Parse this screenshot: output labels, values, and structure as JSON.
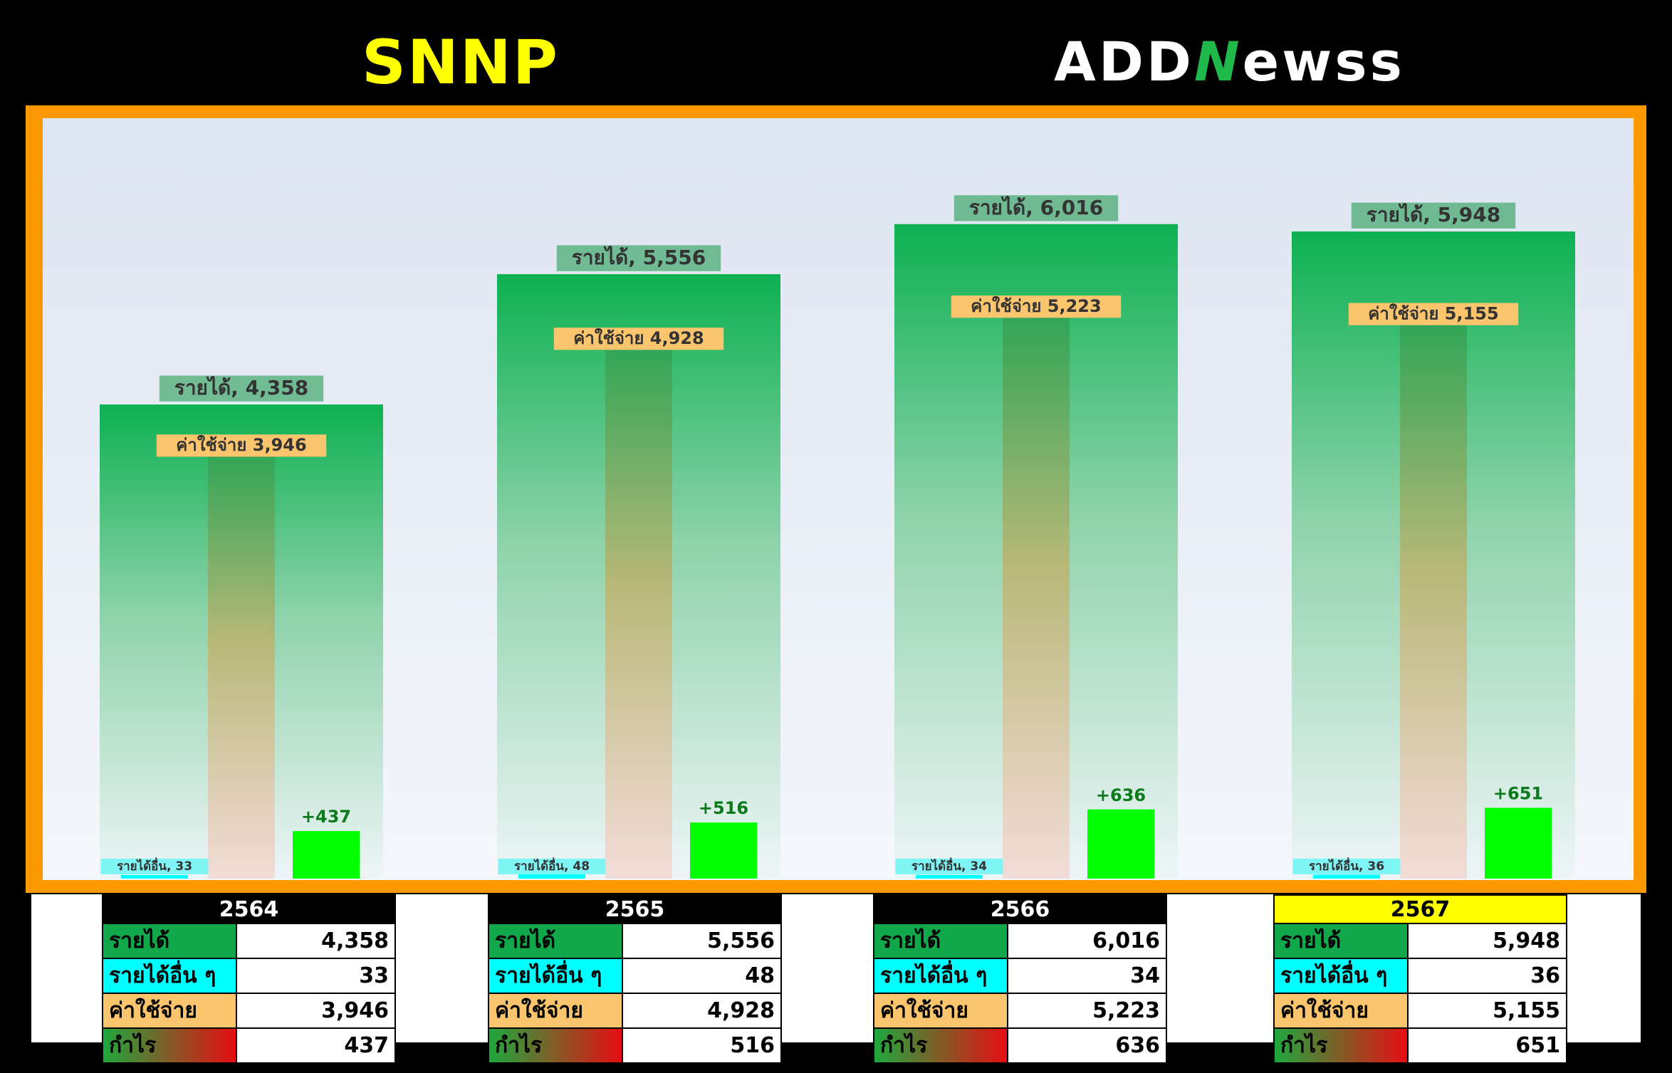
{
  "header": {
    "ticker": "SNNP",
    "logo_text_a": "ADD",
    "logo_text_n": "N",
    "logo_text_b": "ewss"
  },
  "chart_data": {
    "type": "bar",
    "categories": [
      "2564",
      "2565",
      "2566",
      "2567"
    ],
    "series": [
      {
        "name": "รายได้",
        "values": [
          4358,
          5556,
          6016,
          5948
        ],
        "color": "#0db151"
      },
      {
        "name": "ค่าใช้จ่าย",
        "values": [
          3946,
          4928,
          5223,
          5155
        ],
        "color": "#fbc56e"
      },
      {
        "name": "รายได้อื่น",
        "values": [
          33,
          48,
          34,
          36
        ],
        "color": "#00ffff"
      },
      {
        "name": "กำไร",
        "values": [
          437,
          516,
          636,
          651
        ],
        "color": "#00ff00"
      }
    ],
    "labels": {
      "revenue": [
        "รายได้, 4,358",
        "รายได้, 5,556",
        "รายได้, 6,016",
        "รายได้, 5,948"
      ],
      "expense": [
        "ค่าใช้จ่าย 3,946",
        "ค่าใช้จ่าย 4,928",
        "ค่าใช้จ่าย 5,223",
        "ค่าใช้จ่าย 5,155"
      ],
      "other": [
        "รายได้อื่น, 33",
        "รายได้อื่น, 48",
        "รายได้อื่น, 34",
        "รายได้อื่น, 36"
      ],
      "profit": [
        "+437",
        "+516",
        "+636",
        "+651"
      ]
    },
    "ylim": [
      0,
      7000
    ],
    "grid": false
  },
  "tables": [
    {
      "year": "2564",
      "highlight": false,
      "rows": [
        {
          "label": "รายได้",
          "value": "4,358"
        },
        {
          "label": "รายได้อื่น ๆ",
          "value": "33"
        },
        {
          "label": "ค่าใช้จ่าย",
          "value": "3,946"
        },
        {
          "label": "กำไร",
          "value": "437"
        }
      ]
    },
    {
      "year": "2565",
      "highlight": false,
      "rows": [
        {
          "label": "รายได้",
          "value": "5,556"
        },
        {
          "label": "รายได้อื่น ๆ",
          "value": "48"
        },
        {
          "label": "ค่าใช้จ่าย",
          "value": "4,928"
        },
        {
          "label": "กำไร",
          "value": "516"
        }
      ]
    },
    {
      "year": "2566",
      "highlight": false,
      "rows": [
        {
          "label": "รายได้",
          "value": "6,016"
        },
        {
          "label": "รายได้อื่น ๆ",
          "value": "34"
        },
        {
          "label": "ค่าใช้จ่าย",
          "value": "5,223"
        },
        {
          "label": "กำไร",
          "value": "636"
        }
      ]
    },
    {
      "year": "2567",
      "highlight": true,
      "rows": [
        {
          "label": "รายได้",
          "value": "5,948"
        },
        {
          "label": "รายได้อื่น ๆ",
          "value": "36"
        },
        {
          "label": "ค่าใช้จ่าย",
          "value": "5,155"
        },
        {
          "label": "กำไร",
          "value": "651"
        }
      ]
    }
  ]
}
